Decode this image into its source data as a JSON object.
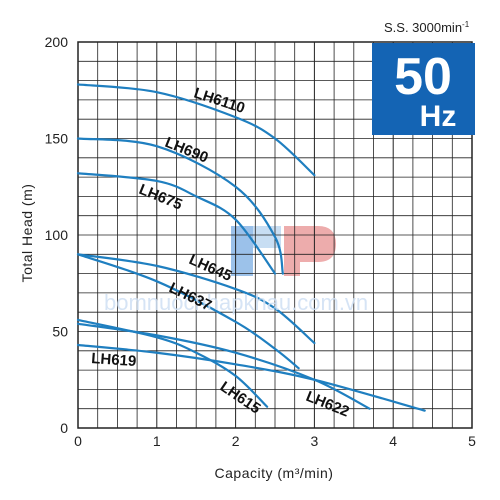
{
  "speed_text": "S.S. 3000min",
  "speed_sup": "-1",
  "frequency_badge": {
    "value": "50",
    "unit": "Hz",
    "color": "#1464b4"
  },
  "watermark": {
    "text": "bomnuocnhapkhau.com.vn",
    "icon": "lp-logo"
  },
  "colors": {
    "curve": "#1f7fc0",
    "grid": "#222222"
  },
  "chart_data": {
    "type": "line",
    "xlabel": "Capacity (m³/min)",
    "ylabel": "Total Head (m)",
    "xlim": [
      0,
      5
    ],
    "ylim": [
      0,
      200
    ],
    "xticks": [
      "0",
      "1",
      "2",
      "3",
      "4",
      "5"
    ],
    "yticks": [
      "0",
      "50",
      "100",
      "150",
      "200"
    ],
    "grid": true,
    "series": [
      {
        "name": "LH6110",
        "x": [
          0,
          1,
          2,
          2.5,
          3.0
        ],
        "y": [
          178,
          174,
          161,
          150,
          131
        ]
      },
      {
        "name": "LH690",
        "x": [
          0,
          1,
          2,
          2.5,
          2.6
        ],
        "y": [
          150,
          146,
          125,
          99,
          80
        ]
      },
      {
        "name": "LH675",
        "x": [
          0,
          1,
          1.5,
          2,
          2.5
        ],
        "y": [
          132,
          128,
          120,
          108,
          80
        ]
      },
      {
        "name": "LH645",
        "x": [
          0,
          1,
          2,
          2.5,
          3.0
        ],
        "y": [
          90,
          84,
          72,
          62,
          44
        ]
      },
      {
        "name": "LH637",
        "x": [
          0,
          1,
          2,
          2.5,
          2.8
        ],
        "y": [
          90,
          76,
          55,
          41,
          31
        ]
      },
      {
        "name": "LH622",
        "x": [
          0,
          1,
          2,
          3,
          3.7
        ],
        "y": [
          54,
          48,
          39,
          25,
          10
        ]
      },
      {
        "name": "LH619",
        "x": [
          0,
          1,
          2,
          3,
          4.4
        ],
        "y": [
          43,
          39,
          33,
          25,
          9
        ]
      },
      {
        "name": "LH615",
        "x": [
          0,
          1,
          1.5,
          2,
          2.4
        ],
        "y": [
          56,
          47,
          39,
          27,
          11
        ]
      }
    ]
  }
}
